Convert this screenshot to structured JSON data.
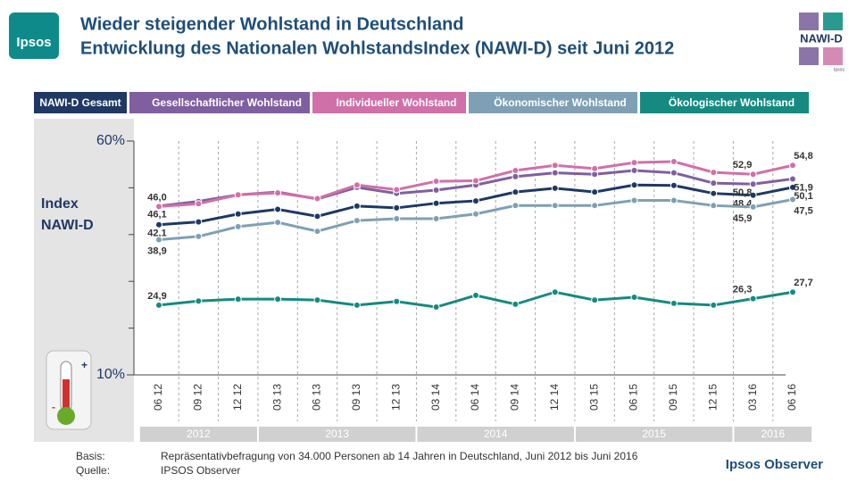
{
  "logo": "Ipsos",
  "badge": {
    "title": "NAWI-D",
    "small": "Ipsos"
  },
  "chart_data": {
    "type": "line",
    "title": "Wieder steigender Wohlstand in Deutschland",
    "subtitle": "Entwicklung des Nationalen WohlstandsIndex (NAWI-D) seit Juni 2012",
    "y_label": [
      "Index",
      "NAWI-D"
    ],
    "categories": [
      "06 12",
      "09 12",
      "12 12",
      "03 13",
      "06 13",
      "09 13",
      "12 13",
      "03 14",
      "06 14",
      "09 14",
      "12 14",
      "03 15",
      "06 15",
      "09 15",
      "12 15",
      "03 16",
      "06 16"
    ],
    "year_groups": [
      {
        "label": "2012",
        "first": 0,
        "last": 2
      },
      {
        "label": "2013",
        "first": 3,
        "last": 6
      },
      {
        "label": "2014",
        "first": 7,
        "last": 10
      },
      {
        "label": "2015",
        "first": 11,
        "last": 14
      },
      {
        "label": "2016",
        "first": 15,
        "last": 16
      }
    ],
    "ylim": [
      10,
      60
    ],
    "yticks": [
      {
        "value": 10,
        "label": "10%"
      },
      {
        "value": 60,
        "label": "60%"
      }
    ],
    "yminorticks": [
      20,
      30,
      40,
      50
    ],
    "series": [
      {
        "name": "NAWI-D Gesamt",
        "color": "#1f3864",
        "values": [
          42.1,
          42.7,
          44.4,
          45.4,
          43.9,
          46.1,
          45.7,
          46.7,
          47.2,
          49.1,
          49.9,
          49.1,
          50.6,
          50.5,
          48.8,
          48.4,
          50.1
        ],
        "value_labels": [
          "42,1",
          null,
          null,
          null,
          null,
          null,
          null,
          null,
          null,
          null,
          null,
          null,
          null,
          null,
          null,
          "48,4",
          "50,1"
        ]
      },
      {
        "name": "Gesellschaftlicher Wohlstand",
        "color": "#7f5fa0",
        "values": [
          46.1,
          47.1,
          48.5,
          49.1,
          47.6,
          50.1,
          48.8,
          49.5,
          50.6,
          52.4,
          53.2,
          52.9,
          53.7,
          53.2,
          51.0,
          50.8,
          51.9
        ],
        "value_labels": [
          "46,1",
          null,
          null,
          null,
          null,
          null,
          null,
          null,
          null,
          null,
          null,
          null,
          null,
          null,
          null,
          "50,8",
          "51,9"
        ]
      },
      {
        "name": "Individueller Wohlstand",
        "color": "#d070a8",
        "values": [
          46.0,
          46.6,
          48.5,
          48.9,
          47.7,
          50.6,
          49.6,
          51.4,
          51.5,
          53.7,
          54.8,
          54.1,
          55.4,
          55.6,
          53.3,
          52.9,
          54.8
        ],
        "value_labels": [
          "46,0",
          null,
          null,
          null,
          null,
          null,
          null,
          null,
          null,
          null,
          null,
          null,
          null,
          null,
          null,
          "52,9",
          "54,8"
        ]
      },
      {
        "name": "Ökonomischer Wohlstand",
        "color": "#7fa0b4",
        "values": [
          38.9,
          39.6,
          41.7,
          42.6,
          40.7,
          43.0,
          43.4,
          43.4,
          44.4,
          46.2,
          46.2,
          46.2,
          47.3,
          47.3,
          46.2,
          45.9,
          47.5
        ],
        "value_labels": [
          "38,9",
          null,
          null,
          null,
          null,
          null,
          null,
          null,
          null,
          null,
          null,
          null,
          null,
          null,
          null,
          "45,9",
          "47,5"
        ]
      },
      {
        "name": "Ökologischer Wohlstand",
        "color": "#168a80",
        "values": [
          24.9,
          25.8,
          26.2,
          26.2,
          26.0,
          24.9,
          25.7,
          24.5,
          27.0,
          25.1,
          27.7,
          26.0,
          26.6,
          25.3,
          24.9,
          26.3,
          27.7
        ],
        "value_labels": [
          "24,9",
          null,
          null,
          null,
          null,
          null,
          null,
          null,
          null,
          null,
          null,
          null,
          null,
          null,
          null,
          "26,3",
          "27,7"
        ]
      }
    ]
  },
  "footer": {
    "basis_label": "Basis:",
    "basis": "Repräsentativbefragung von 34.000 Personen ab 14 Jahren in Deutschland, Juni 2012 bis Juni 2016",
    "source_label": "Quelle:",
    "source": "IPSOS Observer",
    "brand": "Ipsos Observer"
  }
}
